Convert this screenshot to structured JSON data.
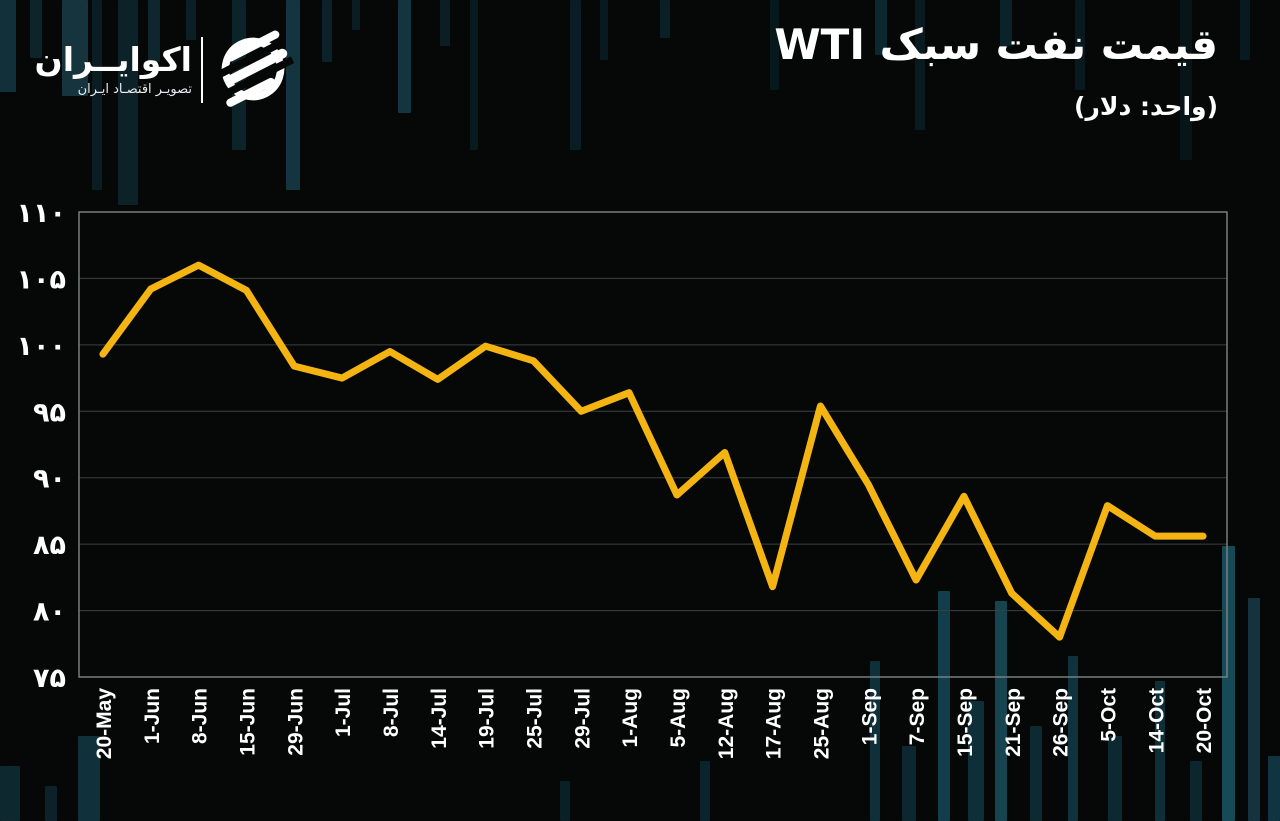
{
  "header": {
    "logo": {
      "brand": "اکوایــران",
      "tagline": "تصویـر اقتصـاد ایـران",
      "emblem_icon": "ecoiran-sphere-logo"
    },
    "title": "قیمت نفت سبک WTI",
    "subtitle": "(واحد: دلار)"
  },
  "chart_data": {
    "type": "line",
    "title": "قیمت نفت سبک WTI",
    "unit_label": "(واحد: دلار)",
    "categories": [
      "20-May",
      "1-Jun",
      "8-Jun",
      "15-Jun",
      "29-Jun",
      "1-Jul",
      "8-Jul",
      "14-Jul",
      "19-Jul",
      "25-Jul",
      "29-Jul",
      "1-Aug",
      "5-Aug",
      "12-Aug",
      "17-Aug",
      "25-Aug",
      "1-Sep",
      "7-Sep",
      "15-Sep",
      "21-Sep",
      "26-Sep",
      "5-Oct",
      "14-Oct",
      "20-Oct"
    ],
    "values": [
      99.3,
      104.2,
      106.0,
      104.1,
      98.4,
      97.5,
      99.5,
      97.4,
      99.9,
      98.8,
      95.0,
      96.4,
      88.7,
      91.9,
      81.8,
      95.4,
      89.5,
      82.3,
      88.6,
      81.3,
      78.0,
      87.9,
      85.6,
      85.6
    ],
    "ylim": [
      75,
      110
    ],
    "ytick_step": 5,
    "ytick_labels_fa": [
      "۷۵",
      "۸۰",
      "۸۵",
      "۹۰",
      "۹۵",
      "۱۰۰",
      "۱۰۵",
      "۱۱۰"
    ],
    "x_label_rotation_deg": 90,
    "grid": true,
    "legend": false,
    "line_color": "#F4B513",
    "text_color": "#FFFFFF",
    "background_color": "#060808"
  },
  "background": {
    "bars": [
      [
        0,
        16,
        92,
        "t",
        "#123039"
      ],
      [
        30,
        12,
        58,
        "t",
        "#0d242b"
      ],
      [
        62,
        26,
        96,
        "t",
        "#16343d"
      ],
      [
        92,
        10,
        190,
        "t",
        "#0a1d23"
      ],
      [
        118,
        20,
        205,
        "t",
        "#0c2128"
      ],
      [
        148,
        12,
        62,
        "t",
        "#0e262e"
      ],
      [
        186,
        10,
        40,
        "t",
        "#0b2026"
      ],
      [
        232,
        14,
        150,
        "t",
        "#0d232a"
      ],
      [
        286,
        14,
        190,
        "t",
        "#133540"
      ],
      [
        322,
        10,
        62,
        "t",
        "#0c2129"
      ],
      [
        352,
        8,
        30,
        "t",
        "#0a1d23"
      ],
      [
        398,
        13,
        113,
        "t",
        "#123540"
      ],
      [
        440,
        10,
        46,
        "t",
        "#0b1e24"
      ],
      [
        470,
        8,
        150,
        "t",
        "#081a20"
      ],
      [
        570,
        11,
        150,
        "t",
        "#0a1d24"
      ],
      [
        600,
        8,
        60,
        "t",
        "#081a20"
      ],
      [
        660,
        10,
        38,
        "t",
        "#0b2026"
      ],
      [
        770,
        9,
        90,
        "t",
        "#07181d"
      ],
      [
        875,
        12,
        55,
        "t",
        "#0c2730"
      ],
      [
        915,
        10,
        130,
        "t",
        "#091a20"
      ],
      [
        1000,
        12,
        46,
        "t",
        "#0b222a"
      ],
      [
        1075,
        10,
        90,
        "t",
        "#081a1f"
      ],
      [
        1180,
        12,
        160,
        "t",
        "#071418"
      ],
      [
        1240,
        10,
        60,
        "t",
        "#081a20"
      ],
      [
        0,
        20,
        55,
        "b",
        "#0e2830"
      ],
      [
        45,
        12,
        35,
        "b",
        "#0c2129"
      ],
      [
        78,
        22,
        85,
        "b",
        "#10303a"
      ],
      [
        560,
        10,
        40,
        "b",
        "#0a2027"
      ],
      [
        700,
        10,
        60,
        "b",
        "#0b242c"
      ],
      [
        870,
        10,
        160,
        "b",
        "#0f303a"
      ],
      [
        902,
        14,
        75,
        "b",
        "#0d2730"
      ],
      [
        938,
        12,
        230,
        "b",
        "#123d4a"
      ],
      [
        968,
        16,
        120,
        "b",
        "#0e2e38"
      ],
      [
        995,
        12,
        220,
        "b",
        "#16454f"
      ],
      [
        1030,
        12,
        95,
        "b",
        "#0d2a33"
      ],
      [
        1068,
        10,
        165,
        "b",
        "#0f323c"
      ],
      [
        1108,
        14,
        85,
        "b",
        "#0c2830"
      ],
      [
        1155,
        10,
        140,
        "b",
        "#0e2f38"
      ],
      [
        1190,
        12,
        60,
        "b",
        "#0c262e"
      ],
      [
        1222,
        13,
        275,
        "b",
        "#174a57"
      ],
      [
        1248,
        12,
        223,
        "b",
        "#14333f"
      ],
      [
        1268,
        12,
        65,
        "b",
        "#113540"
      ]
    ]
  }
}
